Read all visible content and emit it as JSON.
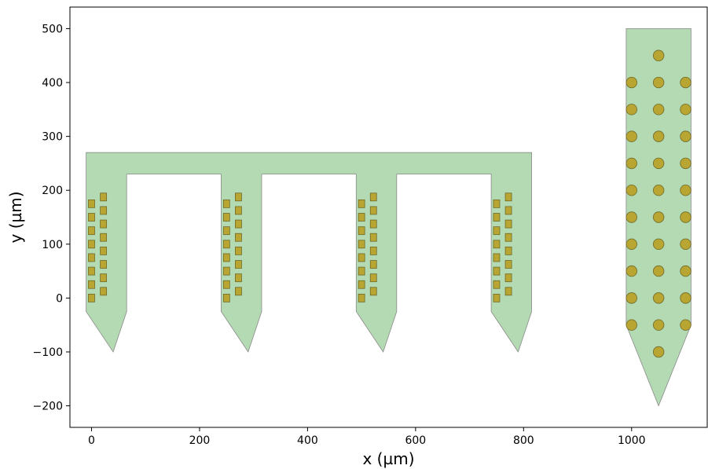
{
  "chart_data": {
    "type": "scatter",
    "title": "",
    "xlabel": "x (µm)",
    "ylabel": "y (µm)",
    "xlim": [
      -40,
      1140
    ],
    "ylim": [
      -240,
      540
    ],
    "x_ticks": [
      0,
      200,
      400,
      600,
      800,
      1000
    ],
    "y_ticks": [
      -200,
      -100,
      0,
      100,
      200,
      300,
      400,
      500
    ],
    "x_tick_labels": [
      "0",
      "200",
      "400",
      "600",
      "800",
      "1000"
    ],
    "y_tick_labels": [
      "−200",
      "−100",
      "0",
      "100",
      "200",
      "300",
      "400",
      "500"
    ],
    "grid": false,
    "colors": {
      "probe_fill": "#b3dab3",
      "probe_edge": "#8a8a8a",
      "contact_fill": "#b8a532",
      "contact_edge": "#6f6a28"
    },
    "probes": [
      {
        "shape": "polygon",
        "vertices": [
          [
            -10,
            270
          ],
          [
            815,
            270
          ],
          [
            815,
            -25
          ],
          [
            790,
            -100
          ],
          [
            740,
            -25
          ],
          [
            740,
            230
          ],
          [
            565,
            230
          ],
          [
            565,
            -25
          ],
          [
            540,
            -100
          ],
          [
            490,
            -25
          ],
          [
            490,
            230
          ],
          [
            315,
            230
          ],
          [
            315,
            -25
          ],
          [
            290,
            -100
          ],
          [
            240,
            -25
          ],
          [
            240,
            230
          ],
          [
            65,
            230
          ],
          [
            65,
            -25
          ],
          [
            40,
            -100
          ],
          [
            -10,
            -25
          ]
        ]
      },
      {
        "shape": "polygon",
        "vertices": [
          [
            990,
            500
          ],
          [
            1110,
            500
          ],
          [
            1110,
            -50
          ],
          [
            1050,
            -200
          ],
          [
            990,
            -50
          ]
        ]
      }
    ],
    "series": [
      {
        "marker": "square",
        "x": [
          0,
          0,
          0,
          0,
          0,
          0,
          0,
          0,
          22,
          22,
          22,
          22,
          22,
          22,
          22,
          22,
          250,
          250,
          250,
          250,
          250,
          250,
          250,
          250,
          272,
          272,
          272,
          272,
          272,
          272,
          272,
          272,
          500,
          500,
          500,
          500,
          500,
          500,
          500,
          500,
          522,
          522,
          522,
          522,
          522,
          522,
          522,
          522,
          750,
          750,
          750,
          750,
          750,
          750,
          750,
          750,
          772,
          772,
          772,
          772,
          772,
          772,
          772,
          772
        ],
        "y": [
          0,
          25,
          50,
          75,
          100,
          125,
          150,
          175,
          12.5,
          37.5,
          62.5,
          87.5,
          112.5,
          137.5,
          162.5,
          187.5,
          0,
          25,
          50,
          75,
          100,
          125,
          150,
          175,
          12.5,
          37.5,
          62.5,
          87.5,
          112.5,
          137.5,
          162.5,
          187.5,
          0,
          25,
          50,
          75,
          100,
          125,
          150,
          175,
          12.5,
          37.5,
          62.5,
          87.5,
          112.5,
          137.5,
          162.5,
          187.5,
          0,
          25,
          50,
          75,
          100,
          125,
          150,
          175,
          12.5,
          37.5,
          62.5,
          87.5,
          112.5,
          137.5,
          162.5,
          187.5
        ]
      },
      {
        "marker": "circle",
        "x": [
          1000,
          1000,
          1000,
          1000,
          1000,
          1000,
          1000,
          1000,
          1000,
          1000,
          1050,
          1050,
          1050,
          1050,
          1050,
          1050,
          1050,
          1050,
          1050,
          1050,
          1050,
          1050,
          1100,
          1100,
          1100,
          1100,
          1100,
          1100,
          1100,
          1100,
          1100,
          1100
        ],
        "y": [
          -50,
          0,
          50,
          100,
          150,
          200,
          250,
          300,
          350,
          400,
          -100,
          -50,
          0,
          50,
          100,
          150,
          200,
          250,
          300,
          350,
          400,
          450,
          -50,
          0,
          50,
          100,
          150,
          200,
          250,
          300,
          350,
          400
        ]
      }
    ]
  }
}
